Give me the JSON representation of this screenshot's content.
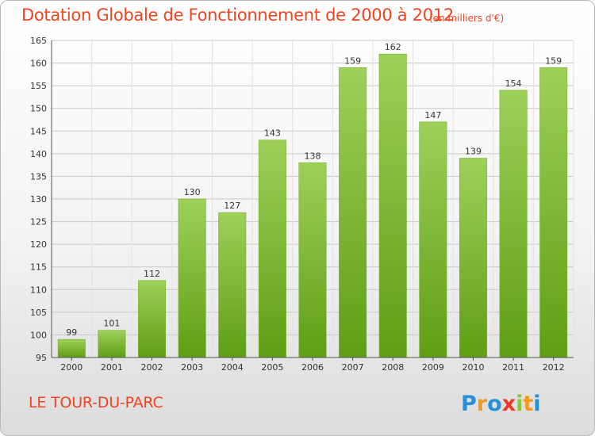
{
  "header": {
    "title": "Dotation Globale de Fonctionnement de 2000 à 2012",
    "unit": "(en milliers d'€)"
  },
  "footer": {
    "commune": "LE TOUR-DU-PARC",
    "logo_text": "Proxiti"
  },
  "colors": {
    "title": "#ee4422",
    "bar_light": "#9ed05a",
    "bar_dark": "#5f9e14",
    "grid": "#c8c8c8"
  },
  "chart_data": {
    "type": "bar",
    "title": "Dotation Globale de Fonctionnement de 2000 à 2012",
    "xlabel": "",
    "ylabel": "",
    "categories": [
      "2000",
      "2001",
      "2002",
      "2003",
      "2004",
      "2005",
      "2006",
      "2007",
      "2008",
      "2009",
      "2010",
      "2011",
      "2012"
    ],
    "values": [
      99,
      101,
      112,
      130,
      127,
      143,
      138,
      159,
      162,
      147,
      139,
      154,
      159
    ],
    "ylim": [
      95,
      165
    ],
    "yticks": [
      95,
      100,
      105,
      110,
      115,
      120,
      125,
      130,
      135,
      140,
      145,
      150,
      155,
      160,
      165
    ],
    "grid": true,
    "legend": "none"
  }
}
